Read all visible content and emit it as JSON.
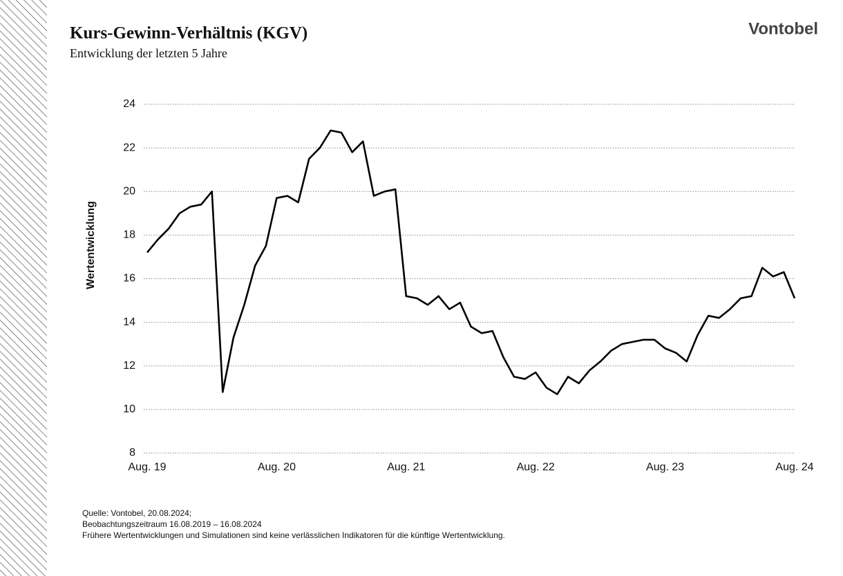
{
  "chart_data": {
    "type": "line",
    "title": "Kurs-Gewinn-Verhältnis (KGV)",
    "subtitle": "Entwicklung der letzten 5 Jahre",
    "brand": "Vontobel",
    "y_label": "Wertentwicklung",
    "x": [
      "2019-08",
      "2019-09",
      "2019-10",
      "2019-11",
      "2019-12",
      "2020-01",
      "2020-02",
      "2020-03",
      "2020-04",
      "2020-05",
      "2020-06",
      "2020-07",
      "2020-08",
      "2020-09",
      "2020-10",
      "2020-11",
      "2020-12",
      "2021-01",
      "2021-02",
      "2021-03",
      "2021-04",
      "2021-05",
      "2021-06",
      "2021-07",
      "2021-08",
      "2021-09",
      "2021-10",
      "2021-11",
      "2021-12",
      "2022-01",
      "2022-02",
      "2022-03",
      "2022-04",
      "2022-05",
      "2022-06",
      "2022-07",
      "2022-08",
      "2022-09",
      "2022-10",
      "2022-11",
      "2022-12",
      "2023-01",
      "2023-02",
      "2023-03",
      "2023-04",
      "2023-05",
      "2023-06",
      "2023-07",
      "2023-08",
      "2023-09",
      "2023-10",
      "2023-11",
      "2023-12",
      "2024-01",
      "2024-02",
      "2024-03",
      "2024-04",
      "2024-05",
      "2024-06",
      "2024-07",
      "2024-08"
    ],
    "values": [
      17.2,
      17.8,
      18.3,
      19.0,
      19.3,
      19.4,
      20.0,
      10.8,
      13.3,
      14.8,
      16.6,
      17.5,
      19.7,
      19.8,
      19.5,
      21.5,
      22.0,
      22.8,
      22.7,
      21.8,
      22.3,
      19.8,
      20.0,
      20.1,
      15.2,
      15.1,
      14.8,
      15.2,
      14.6,
      14.9,
      13.8,
      13.5,
      13.6,
      12.4,
      11.5,
      11.4,
      11.7,
      11.0,
      10.7,
      11.5,
      11.2,
      11.8,
      12.2,
      12.7,
      13.0,
      13.1,
      13.2,
      13.2,
      12.8,
      12.6,
      12.2,
      13.4,
      14.3,
      14.2,
      14.6,
      15.1,
      15.2,
      16.5,
      16.1,
      16.3,
      15.1
    ],
    "color": "#000000",
    "xlim": [
      "2019-08",
      "2024-08"
    ],
    "xticks": [
      {
        "value": "2019-08",
        "label": "Aug. 19"
      },
      {
        "value": "2020-08",
        "label": "Aug. 20"
      },
      {
        "value": "2021-08",
        "label": "Aug. 21"
      },
      {
        "value": "2022-08",
        "label": "Aug. 22"
      },
      {
        "value": "2023-08",
        "label": "Aug. 23"
      },
      {
        "value": "2024-08",
        "label": "Aug. 24"
      }
    ],
    "ylim": [
      8,
      24
    ],
    "yticks": [
      8,
      10,
      12,
      14,
      16,
      18,
      20,
      22,
      24
    ],
    "grid": true,
    "notes": [
      "Quelle: Vontobel, 20.08.2024;",
      "Beobachtungszeitraum 16.08.2019 – 16.08.2024",
      "Frühere Wertentwicklungen und Simulationen sind keine verlässlichen Indikatoren für die künftige Wertentwicklung."
    ]
  }
}
